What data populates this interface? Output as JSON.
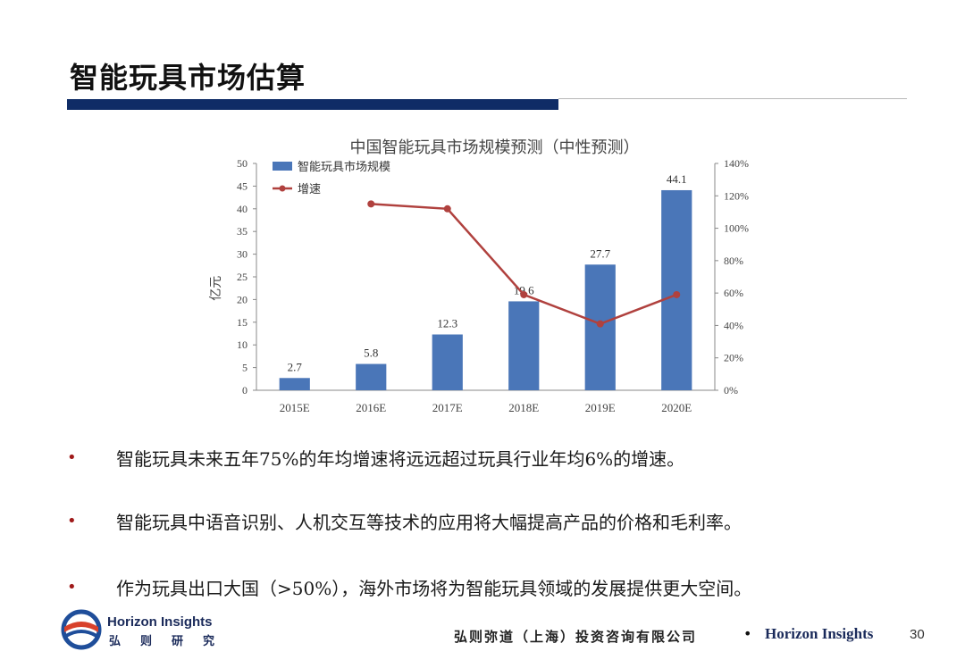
{
  "header": {
    "title": "智能玩具市场估算"
  },
  "chart_data": {
    "type": "bar+line",
    "title": "中国智能玩具市场规模预测（中性预测）",
    "categories": [
      "2015E",
      "2016E",
      "2017E",
      "2018E",
      "2019E",
      "2020E"
    ],
    "series": [
      {
        "name": "智能玩具市场规模",
        "type": "bar",
        "axis": "left",
        "values": [
          2.7,
          5.8,
          12.3,
          19.6,
          27.7,
          44.1
        ],
        "labels": [
          "2.7",
          "5.8",
          "12.3",
          "19.6",
          "27.7",
          "44.1"
        ],
        "color": "#4a76b8"
      },
      {
        "name": "增速",
        "type": "line",
        "axis": "right",
        "values": [
          null,
          1.15,
          1.12,
          0.59,
          0.41,
          0.59
        ],
        "color": "#b0413e"
      }
    ],
    "ylabel": "亿元",
    "ylim": [
      0,
      50
    ],
    "yticks": [
      "0",
      "5",
      "10",
      "15",
      "20",
      "25",
      "30",
      "35",
      "40",
      "45",
      "50"
    ],
    "y2lim": [
      0,
      1.4
    ],
    "y2ticks": [
      "0%",
      "20%",
      "40%",
      "60%",
      "80%",
      "100%",
      "120%",
      "140%"
    ],
    "legend": "top-left"
  },
  "bullets": [
    "智能玩具未来五年75%的年均增速将远远超过玩具行业年均6%的增速。",
    "智能玩具中语音识别、人机交互等技术的应用将大幅提高产品的价格和毛利率。",
    "作为玩具出口大国（>50%），海外市场将为智能玩具领域的发展提供更大空间。"
  ],
  "bullet_symbol": "•",
  "footer": {
    "logo_en": "Horizon Insights",
    "logo_cn": "弘则研究",
    "company": "弘则弥道（上海）投资咨询有限公司",
    "separator": "•",
    "brand": "Horizon Insights",
    "page": "30"
  },
  "colors": {
    "title_bar": "#0f2c66",
    "bar": "#4a76b8",
    "line": "#b0413e",
    "bullet": "#a01a1a"
  }
}
